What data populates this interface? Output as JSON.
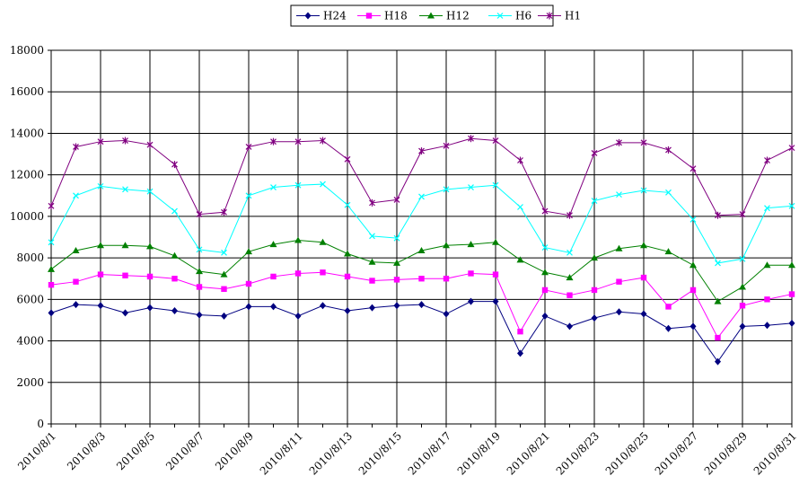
{
  "chart_data": {
    "type": "line",
    "title": "",
    "xlabel": "",
    "ylabel": "",
    "ylim": [
      0,
      18000
    ],
    "yticks": [
      0,
      2000,
      4000,
      6000,
      8000,
      10000,
      12000,
      14000,
      16000,
      18000
    ],
    "grid": true,
    "legend_position": "top-center",
    "x": [
      "2010/8/1",
      "2010/8/2",
      "2010/8/3",
      "2010/8/4",
      "2010/8/5",
      "2010/8/6",
      "2010/8/7",
      "2010/8/8",
      "2010/8/9",
      "2010/8/10",
      "2010/8/11",
      "2010/8/12",
      "2010/8/13",
      "2010/8/14",
      "2010/8/15",
      "2010/8/16",
      "2010/8/17",
      "2010/8/18",
      "2010/8/19",
      "2010/8/20",
      "2010/8/21",
      "2010/8/22",
      "2010/8/23",
      "2010/8/24",
      "2010/8/25",
      "2010/8/26",
      "2010/8/27",
      "2010/8/28",
      "2010/8/29",
      "2010/8/30",
      "2010/8/31"
    ],
    "xtick_labels": [
      "2010/8/1",
      "2010/8/3",
      "2010/8/5",
      "2010/8/7",
      "2010/8/9",
      "2010/8/11",
      "2010/8/13",
      "2010/8/15",
      "2010/8/17",
      "2010/8/19",
      "2010/8/21",
      "2010/8/23",
      "2010/8/25",
      "2010/8/27",
      "2010/8/29",
      "2010/8/31"
    ],
    "series": [
      {
        "name": "H24",
        "color": "#000080",
        "marker": "diamond",
        "values": [
          5350,
          5750,
          5700,
          5350,
          5600,
          5450,
          5250,
          5200,
          5650,
          5650,
          5200,
          5700,
          5450,
          5600,
          5700,
          5750,
          5300,
          5900,
          5900,
          3400,
          5200,
          4700,
          5100,
          5400,
          5300,
          4600,
          4700,
          3000,
          4700,
          4750,
          4850
        ]
      },
      {
        "name": "H18",
        "color": "#FF00FF",
        "marker": "square",
        "values": [
          6700,
          6850,
          7200,
          7150,
          7100,
          7000,
          6600,
          6500,
          6750,
          7100,
          7250,
          7300,
          7100,
          6900,
          6950,
          7000,
          7000,
          7250,
          7200,
          4450,
          6450,
          6200,
          6450,
          6850,
          7050,
          5650,
          6450,
          4150,
          5700,
          6000,
          6250
        ]
      },
      {
        "name": "H12",
        "color": "#008000",
        "marker": "triangle",
        "values": [
          7450,
          8350,
          8600,
          8600,
          8550,
          8100,
          7350,
          7200,
          8300,
          8650,
          8850,
          8750,
          8200,
          7800,
          7750,
          8350,
          8600,
          8650,
          8750,
          7900,
          7300,
          7050,
          8000,
          8450,
          8600,
          8300,
          7650,
          5900,
          6600,
          7650,
          7650
        ]
      },
      {
        "name": "H6",
        "color": "#00FFFF",
        "marker": "x",
        "values": [
          8750,
          11000,
          11450,
          11300,
          11200,
          10250,
          8400,
          8250,
          11000,
          11400,
          11500,
          11550,
          10550,
          9050,
          8950,
          10950,
          11300,
          11400,
          11500,
          10450,
          8500,
          8250,
          10750,
          11050,
          11250,
          11150,
          9850,
          7750,
          7950,
          10400,
          10500
        ]
      },
      {
        "name": "H1",
        "color": "#800080",
        "marker": "star",
        "values": [
          10500,
          13350,
          13600,
          13650,
          13450,
          12500,
          10100,
          10200,
          13350,
          13600,
          13600,
          13650,
          12750,
          10650,
          10800,
          13150,
          13400,
          13750,
          13650,
          12700,
          10250,
          10050,
          13050,
          13550,
          13550,
          13200,
          12300,
          10050,
          10100,
          12700,
          13300
        ]
      }
    ]
  }
}
